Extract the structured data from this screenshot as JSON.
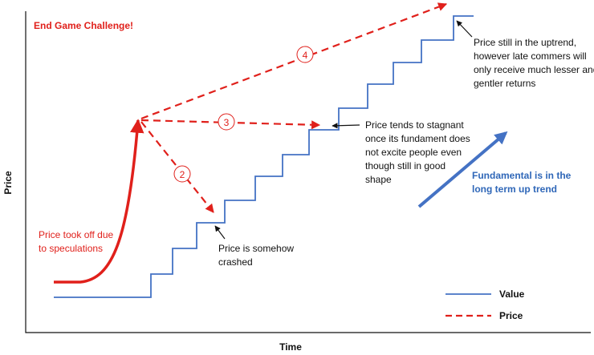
{
  "title": "End Game Challenge!",
  "axes": {
    "y_label": "Price",
    "x_label": "Time"
  },
  "annotations": {
    "speculation": [
      "Price took off due",
      "to speculations"
    ],
    "crash": [
      "Price is somehow",
      "crashed"
    ],
    "stagnant": [
      "Price tends to stagnant",
      "once its fundament does",
      "not excite people even",
      "though still in good",
      "shape"
    ],
    "uptrend": [
      "Price still in the uptrend,",
      "however late commers will",
      "only receive much lesser and",
      "gentler returns"
    ],
    "fundamental": [
      "Fundamental is in the",
      "long term up trend"
    ]
  },
  "steps": [
    "2",
    "3",
    "4"
  ],
  "legend": [
    "Value",
    "Price"
  ]
}
